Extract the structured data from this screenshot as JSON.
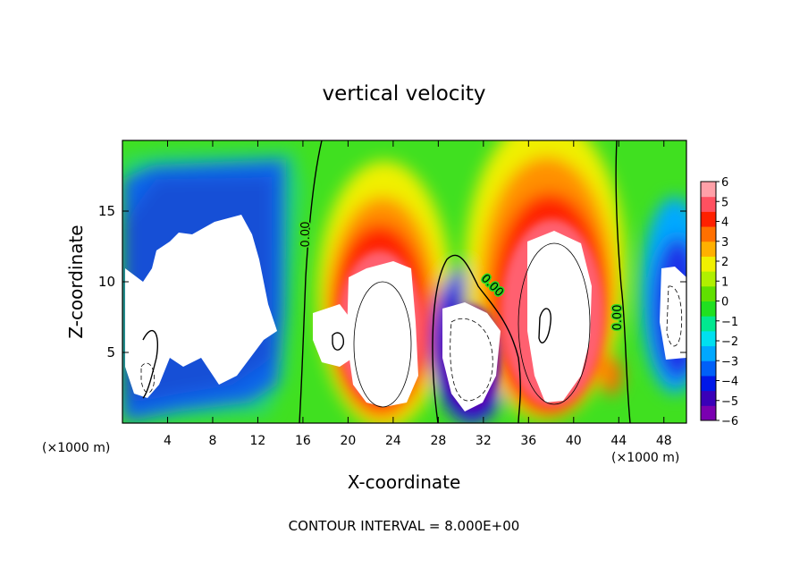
{
  "chart_data": {
    "type": "heatmap",
    "title": "vertical velocity",
    "xlabel": "X-coordinate",
    "ylabel": "Z-coordinate",
    "x_unit": "(×1000 m)",
    "footer": "CONTOUR INTERVAL = 8.000E+00",
    "xlim": [
      0,
      50
    ],
    "ylim": [
      0,
      20
    ],
    "x_ticks": [
      4,
      8,
      12,
      16,
      20,
      24,
      28,
      32,
      36,
      40,
      44,
      48
    ],
    "y_ticks": [
      5,
      10,
      15
    ],
    "colorbar": {
      "min": -6,
      "max": 6,
      "ticks": [
        6,
        5,
        4,
        3,
        2,
        1,
        0,
        -1,
        -2,
        -3,
        -4,
        -5,
        -6
      ],
      "colors": [
        "#7a00b0",
        "#3a00b8",
        "#0018e8",
        "#0060f8",
        "#00a8ff",
        "#00e0f0",
        "#00e890",
        "#20e020",
        "#60e000",
        "#b0f000",
        "#f0f000",
        "#ffb000",
        "#ff7000",
        "#ff2000",
        "#ff5060",
        "#ffa0a8"
      ]
    },
    "contour_labels": [
      "0.00",
      "0.00",
      "0.00"
    ],
    "features": [
      {
        "kind": "downdraft",
        "x": [
          0,
          15
        ],
        "z": [
          0,
          17
        ],
        "peak": "< -6"
      },
      {
        "kind": "updraft",
        "x": [
          17,
          27
        ],
        "z": [
          0,
          14
        ],
        "peak": "> 6"
      },
      {
        "kind": "downdraft",
        "x": [
          28,
          35
        ],
        "z": [
          0,
          11
        ],
        "peak": "< -6"
      },
      {
        "kind": "updraft",
        "x": [
          34,
          42
        ],
        "z": [
          0,
          16
        ],
        "peak": "> 6"
      },
      {
        "kind": "downdraft",
        "x": [
          44,
          50
        ],
        "z": [
          3,
          12
        ],
        "peak": "< -6"
      }
    ]
  }
}
